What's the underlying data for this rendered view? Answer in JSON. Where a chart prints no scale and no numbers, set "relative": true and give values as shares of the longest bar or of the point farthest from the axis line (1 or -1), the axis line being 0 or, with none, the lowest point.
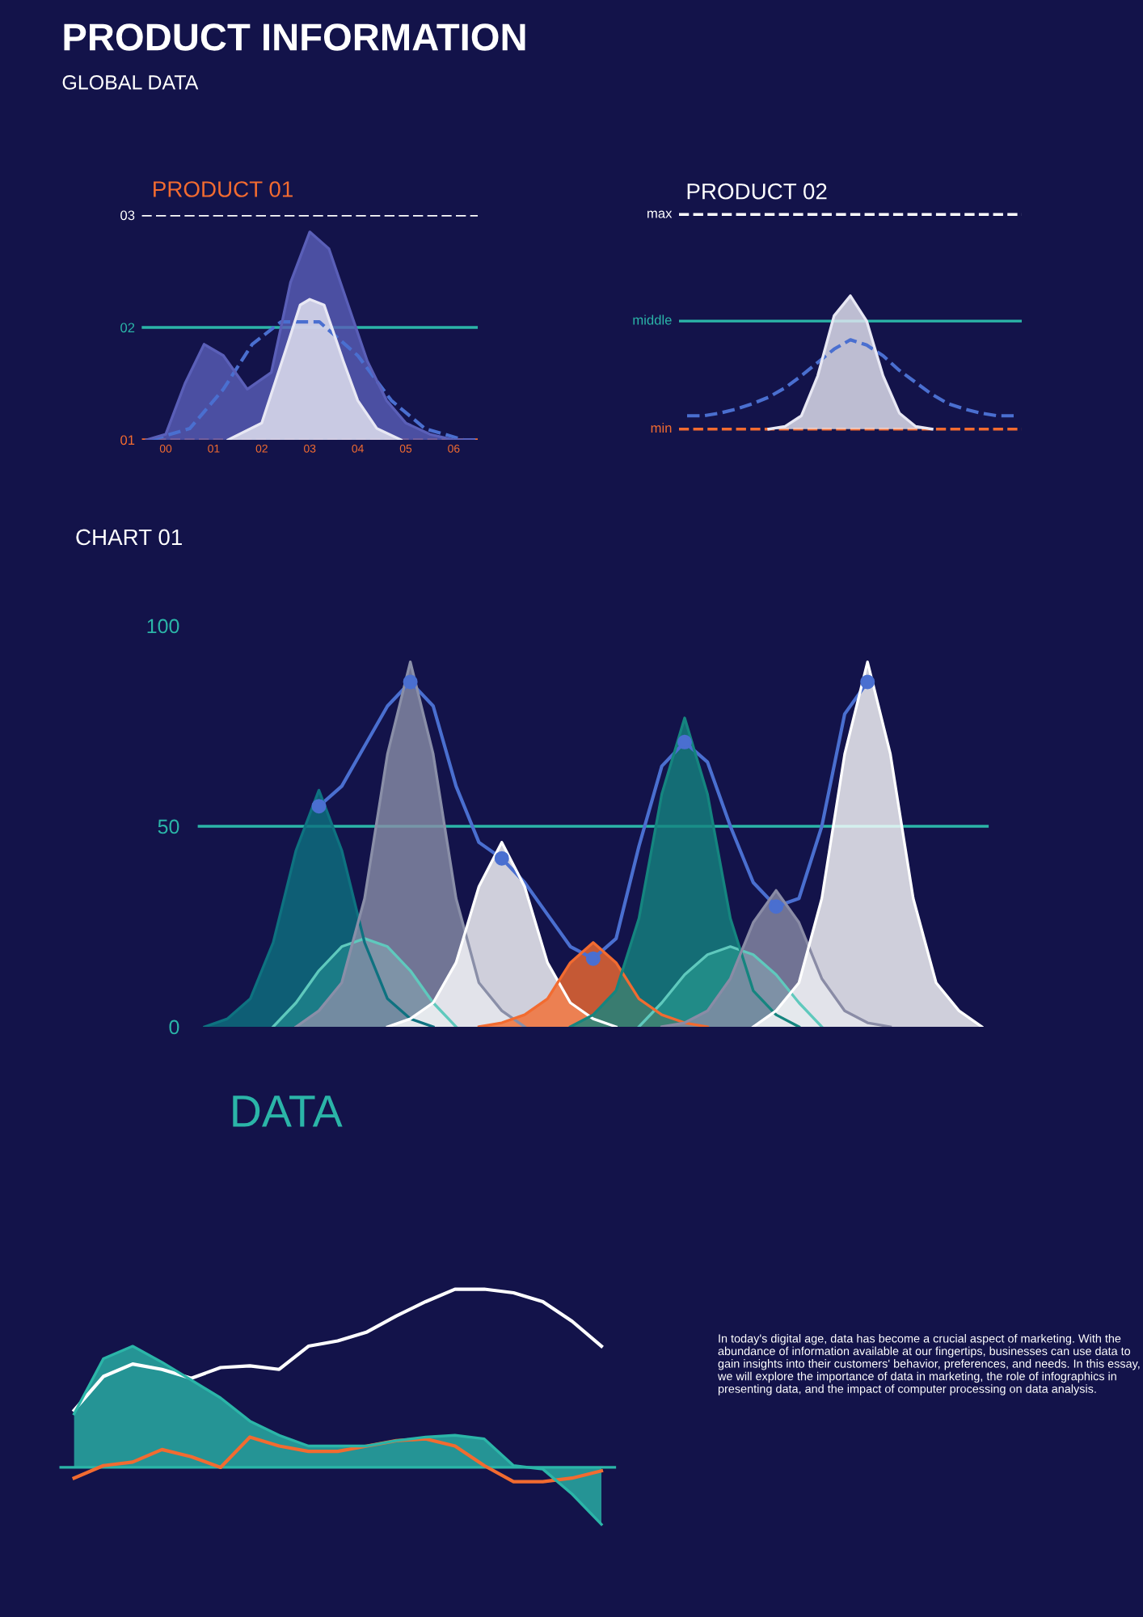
{
  "chart_data": [
    {
      "type": "other",
      "title": "PRODUCT INFORMATION",
      "subtitle": "GLOBAL DATA"
    },
    {
      "type": "area",
      "title": "PRODUCT 01",
      "xlim": [
        -0.5,
        6.5
      ],
      "ylim": [
        1,
        3
      ],
      "xticks": [
        {
          "value": 0,
          "label": "00"
        },
        {
          "value": 1,
          "label": "01"
        },
        {
          "value": 2,
          "label": "02"
        },
        {
          "value": 3,
          "label": "03"
        },
        {
          "value": 4,
          "label": "04"
        },
        {
          "value": 5,
          "label": "05"
        },
        {
          "value": 6,
          "label": "06"
        }
      ],
      "yticks": [
        {
          "value": 1,
          "label": "01"
        },
        {
          "value": 2,
          "label": "02"
        },
        {
          "value": 3,
          "label": "03"
        }
      ],
      "ref_lines": [
        {
          "axis": "y",
          "value": 3,
          "label": null,
          "color": "#ffffff",
          "line_style": "dashed"
        },
        {
          "axis": "y",
          "value": 2,
          "label": null,
          "color": "#2bb5a8",
          "line_style": "solid"
        },
        {
          "axis": "y",
          "value": 1,
          "label": null,
          "color": "#f26b30",
          "line_style": "dashed"
        }
      ],
      "series": [
        {
          "color": "#5a5fb8",
          "x": [
            -0.4,
            0,
            0.4,
            0.8,
            1.2,
            1.7,
            2.2,
            2.6,
            3.0,
            3.4,
            3.8,
            4.2,
            4.6,
            5.0,
            5.5,
            6.0,
            6.4
          ],
          "values": [
            1.0,
            1.05,
            1.5,
            1.85,
            1.75,
            1.45,
            1.6,
            2.4,
            2.85,
            2.7,
            2.2,
            1.7,
            1.35,
            1.15,
            1.05,
            1.0,
            1.0
          ]
        },
        {
          "color": "#e8e8f4",
          "x": [
            1.3,
            2.0,
            2.5,
            2.8,
            3.0,
            3.3,
            3.7,
            4.0,
            4.4,
            4.9
          ],
          "values": [
            1.0,
            1.15,
            1.8,
            2.2,
            2.25,
            2.2,
            1.7,
            1.35,
            1.1,
            1.0
          ]
        },
        {
          "type": "line",
          "line_style": "dashed",
          "color": "#4a6fd0",
          "x": [
            -0.3,
            0.5,
            1.2,
            1.8,
            2.4,
            3.2,
            4.0,
            4.7,
            5.4,
            6.2,
            6.5
          ],
          "values": [
            1.0,
            1.1,
            1.45,
            1.85,
            2.05,
            2.05,
            1.75,
            1.35,
            1.1,
            1.0,
            1.0
          ]
        }
      ]
    },
    {
      "type": "area",
      "title": "PRODUCT 02",
      "relative": true,
      "tick_labels": false,
      "categories": [
        null,
        null,
        null,
        null,
        null,
        null,
        null,
        null,
        null,
        null,
        null,
        null,
        null,
        null,
        null,
        null,
        null,
        null,
        null,
        null,
        null
      ],
      "ref_lines": [
        {
          "axis": "y",
          "value": 1.61,
          "label": "max",
          "color": "#ffffff",
          "line_style": "dashed"
        },
        {
          "axis": "y",
          "value": 0.81,
          "label": "middle",
          "color": "#2bb5a8",
          "line_style": "solid"
        },
        {
          "axis": "y",
          "value": 0,
          "label": "min",
          "color": "#f26b30",
          "line_style": "dashed"
        }
      ],
      "series": [
        {
          "color": "#e8e8f4",
          "values": [
            null,
            null,
            null,
            null,
            null,
            0,
            0.02,
            0.1,
            0.4,
            0.85,
            1,
            0.81,
            0.4,
            0.12,
            0.02,
            0,
            null,
            null,
            null,
            null,
            null
          ]
        },
        {
          "type": "line",
          "line_style": "dashed",
          "color": "#4a6fd0",
          "values": [
            0.1,
            0.1,
            0.12,
            0.15,
            0.19,
            0.24,
            0.31,
            0.4,
            0.5,
            0.6,
            0.67,
            0.63,
            0.55,
            0.44,
            0.35,
            0.26,
            0.19,
            0.15,
            0.12,
            0.1,
            0.1
          ]
        }
      ]
    },
    {
      "type": "area",
      "title": "CHART 01",
      "tick_labels": "y",
      "ylim": [
        0,
        100
      ],
      "yticks": [
        0,
        50,
        100
      ],
      "categories": [
        null,
        null,
        null,
        null,
        null,
        null,
        null,
        null,
        null,
        null,
        null,
        null,
        null,
        null,
        null,
        null,
        null,
        null,
        null,
        null,
        null,
        null,
        null,
        null,
        null,
        null,
        null,
        null,
        null,
        null,
        null,
        null,
        null,
        null,
        null
      ],
      "annotations": [
        "DATA"
      ],
      "ref_lines": [
        {
          "axis": "y",
          "value": 50,
          "label": null,
          "color": "#2bb5a8",
          "line_style": "solid"
        }
      ],
      "series": [
        {
          "color": "#5fc9bd",
          "values": [
            null,
            null,
            null,
            0,
            6,
            14,
            20,
            22,
            20,
            14,
            6,
            0,
            null,
            null,
            null,
            null,
            null,
            null,
            null,
            null,
            null,
            null,
            null,
            null,
            null,
            null,
            null,
            null,
            null,
            null,
            null,
            null,
            null,
            null,
            null
          ]
        },
        {
          "color": "#5fc9bd",
          "values": [
            null,
            null,
            null,
            null,
            null,
            null,
            null,
            null,
            null,
            null,
            null,
            null,
            null,
            null,
            null,
            null,
            null,
            null,
            null,
            0,
            6,
            13,
            18,
            20,
            18,
            13,
            6,
            0,
            null,
            null,
            null,
            null,
            null,
            null,
            null
          ]
        },
        {
          "color": "#0e7280",
          "values": [
            0,
            2,
            7,
            21,
            44,
            59,
            44,
            21,
            7,
            2,
            0,
            null,
            null,
            null,
            null,
            null,
            null,
            null,
            null,
            null,
            null,
            null,
            null,
            null,
            null,
            null,
            null,
            null,
            null,
            null,
            null,
            null,
            null,
            null,
            null
          ]
        },
        {
          "color": "#8a8fa8",
          "values": [
            null,
            null,
            null,
            null,
            0,
            4,
            11,
            32,
            68,
            91,
            68,
            32,
            11,
            4,
            0,
            null,
            null,
            null,
            null,
            null,
            null,
            null,
            null,
            null,
            null,
            null,
            null,
            null,
            null,
            null,
            null,
            null,
            null,
            null,
            null
          ]
        },
        {
          "color": "#ffffff",
          "values": [
            null,
            null,
            null,
            null,
            null,
            null,
            null,
            null,
            0,
            2,
            6,
            16,
            35,
            46,
            35,
            16,
            6,
            2,
            0,
            null,
            null,
            null,
            null,
            null,
            null,
            null,
            null,
            null,
            null,
            null,
            null,
            null,
            null,
            null,
            null
          ]
        },
        {
          "color": "#f26b30",
          "values": [
            null,
            null,
            null,
            null,
            null,
            null,
            null,
            null,
            null,
            null,
            null,
            null,
            0,
            1,
            3,
            7,
            16,
            21,
            16,
            7,
            3,
            1,
            0,
            null,
            null,
            null,
            null,
            null,
            null,
            null,
            null,
            null,
            null,
            null,
            null
          ]
        },
        {
          "color": "#15857f",
          "values": [
            null,
            null,
            null,
            null,
            null,
            null,
            null,
            null,
            null,
            null,
            null,
            null,
            null,
            null,
            null,
            null,
            0,
            3,
            9,
            27,
            58,
            77,
            58,
            27,
            9,
            3,
            0,
            null,
            null,
            null,
            null,
            null,
            null,
            null,
            null
          ]
        },
        {
          "color": "#8a8ca6",
          "values": [
            null,
            null,
            null,
            null,
            null,
            null,
            null,
            null,
            null,
            null,
            null,
            null,
            null,
            null,
            null,
            null,
            null,
            null,
            null,
            null,
            0,
            1,
            4,
            12,
            26,
            34,
            26,
            12,
            4,
            1,
            0,
            null,
            null,
            null,
            null
          ]
        },
        {
          "color": "#ffffff",
          "values": [
            null,
            null,
            null,
            null,
            null,
            null,
            null,
            null,
            null,
            null,
            null,
            null,
            null,
            null,
            null,
            null,
            null,
            null,
            null,
            null,
            null,
            null,
            null,
            null,
            0,
            4,
            11,
            32,
            68,
            91,
            68,
            32,
            11,
            4,
            0
          ]
        },
        {
          "type": "line",
          "color": "#4a6fd0",
          "values": [
            null,
            null,
            null,
            null,
            null,
            55,
            60,
            70,
            80,
            86,
            80,
            60,
            46,
            42,
            36,
            28,
            20,
            17,
            22,
            45,
            65,
            71,
            66,
            50,
            36,
            30,
            32,
            50,
            78,
            86,
            null,
            null,
            null,
            null,
            null
          ]
        },
        {
          "type": "scatter",
          "marker": "circle",
          "color": "#4a6fd0",
          "values": [
            null,
            null,
            null,
            null,
            null,
            55,
            null,
            null,
            null,
            86,
            null,
            null,
            null,
            42,
            null,
            null,
            null,
            17,
            null,
            null,
            null,
            71,
            null,
            null,
            null,
            30,
            null,
            null,
            null,
            86,
            null,
            null,
            null,
            null,
            null
          ]
        }
      ]
    },
    {
      "type": "line",
      "relative": true,
      "tick_labels": false,
      "ref_lines": [
        {
          "axis": "y",
          "value": 0,
          "label": null,
          "color": "#2bb5a8",
          "line_style": "solid"
        }
      ],
      "categories": [
        null,
        null,
        null,
        null,
        null,
        null,
        null,
        null,
        null,
        null,
        null,
        null,
        null,
        null,
        null,
        null,
        null,
        null,
        null
      ],
      "annotations": [
        "In today's digital age, data has become a crucial aspect of marketing. With the abundance of information available at our fingertips, businesses can use data to gain insights into their customers' behavior, preferences, and needs. In this essay, we will explore the importance of data in marketing, the role of infographics in presenting data, and the impact of computer processing on data analysis."
      ],
      "series": [
        {
          "type": "area",
          "color": "#2bb5a8",
          "values": [
            0.3,
            0.61,
            0.68,
            0.59,
            0.49,
            0.39,
            0.26,
            0.18,
            0.12,
            0.12,
            0.12,
            0.15,
            0.17,
            0.18,
            0.16,
            0.01,
            -0.01,
            -0.15,
            -0.32
          ]
        },
        {
          "color": "#ffffff",
          "values": [
            0.32,
            0.51,
            0.58,
            0.55,
            0.5,
            0.56,
            0.57,
            0.55,
            0.68,
            0.71,
            0.76,
            0.85,
            0.93,
            1.0,
            1.0,
            0.98,
            0.93,
            0.82,
            0.68
          ]
        },
        {
          "color": "#f26b30",
          "values": [
            -0.06,
            0.01,
            0.03,
            0.1,
            0.06,
            0.0,
            0.17,
            0.12,
            0.09,
            0.09,
            0.12,
            0.15,
            0.16,
            0.12,
            0.01,
            -0.08,
            -0.08,
            -0.06,
            -0.02
          ]
        }
      ]
    }
  ]
}
